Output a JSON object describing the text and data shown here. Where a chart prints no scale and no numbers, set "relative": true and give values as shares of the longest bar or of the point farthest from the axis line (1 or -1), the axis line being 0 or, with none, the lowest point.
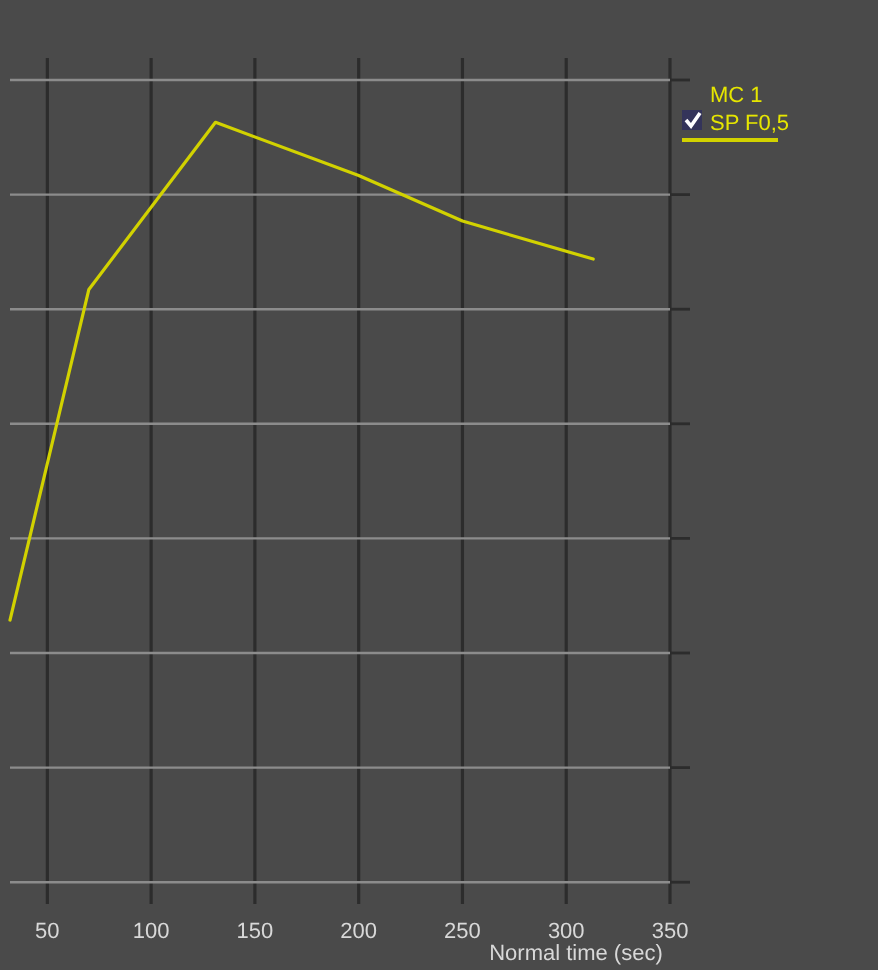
{
  "chart_data": {
    "type": "line",
    "xlabel": "Normal time (sec)",
    "legend_title": "MC 1",
    "x": [
      32,
      70,
      131,
      200,
      250,
      313
    ],
    "series": [
      {
        "name": "SP F0,5",
        "color": "#d2d200",
        "values": [
          0.345,
          0.78,
          1,
          0.93,
          0.87,
          0.82
        ]
      }
    ],
    "relative": true,
    "xlim": [
      32,
      350
    ],
    "xticks": [
      50,
      100,
      150,
      200,
      250,
      300,
      350
    ],
    "grid": true,
    "legend": "right",
    "line_style": "solid"
  }
}
